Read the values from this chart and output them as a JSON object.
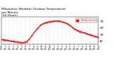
{
  "title": "Milwaukee Weather Outdoor Temperature\nper Minute\n(24 Hours)",
  "title_fontsize": 3.2,
  "background_color": "#ffffff",
  "line_color": "#ff0000",
  "legend_label": "Temperature",
  "legend_color": "#ff0000",
  "ylim": [
    36,
    76
  ],
  "yticks": [
    40,
    50,
    60,
    70
  ],
  "ytick_fontsize": 3.0,
  "xtick_fontsize": 2.2,
  "grid_color": "#aaaaaa",
  "marker_size": 0.5,
  "time_hours": [
    0,
    1,
    2,
    3,
    4,
    5,
    6,
    7,
    8,
    9,
    10,
    11,
    12,
    13,
    14,
    15,
    16,
    17,
    18,
    19,
    20,
    21,
    22,
    23
  ],
  "temperatures": [
    43,
    42,
    41,
    40,
    39,
    38,
    40,
    47,
    56,
    63,
    67,
    69,
    70,
    71,
    70,
    68,
    65,
    60,
    56,
    54,
    52,
    50,
    48,
    46
  ]
}
